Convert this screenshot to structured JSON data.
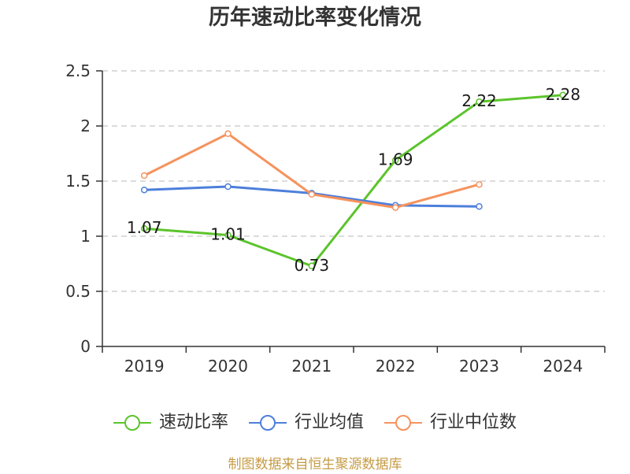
{
  "chart_data": {
    "type": "line",
    "title": "历年速动比率变化情况",
    "categories": [
      "2019",
      "2020",
      "2021",
      "2022",
      "2023",
      "2024"
    ],
    "y_ticks": [
      "0",
      "0.5",
      "1",
      "1.5",
      "2",
      "2.5"
    ],
    "ylim": [
      0,
      2.5
    ],
    "grid": true,
    "legend": "bottom",
    "series": [
      {
        "name": "速动比率",
        "values": [
          1.07,
          1.01,
          0.73,
          1.69,
          2.22,
          2.28
        ],
        "color": "#5bc42b",
        "data_labels": true
      },
      {
        "name": "行业均值",
        "values": [
          1.42,
          1.45,
          1.39,
          1.28,
          1.27,
          null
        ],
        "color": "#4d7fdb",
        "data_labels": false
      },
      {
        "name": "行业中位数",
        "values": [
          1.55,
          1.93,
          1.38,
          1.26,
          1.47,
          null
        ],
        "color": "#f6925d",
        "data_labels": false
      }
    ]
  },
  "footer": {
    "source_note": "制图数据来自恒生聚源数据库"
  }
}
